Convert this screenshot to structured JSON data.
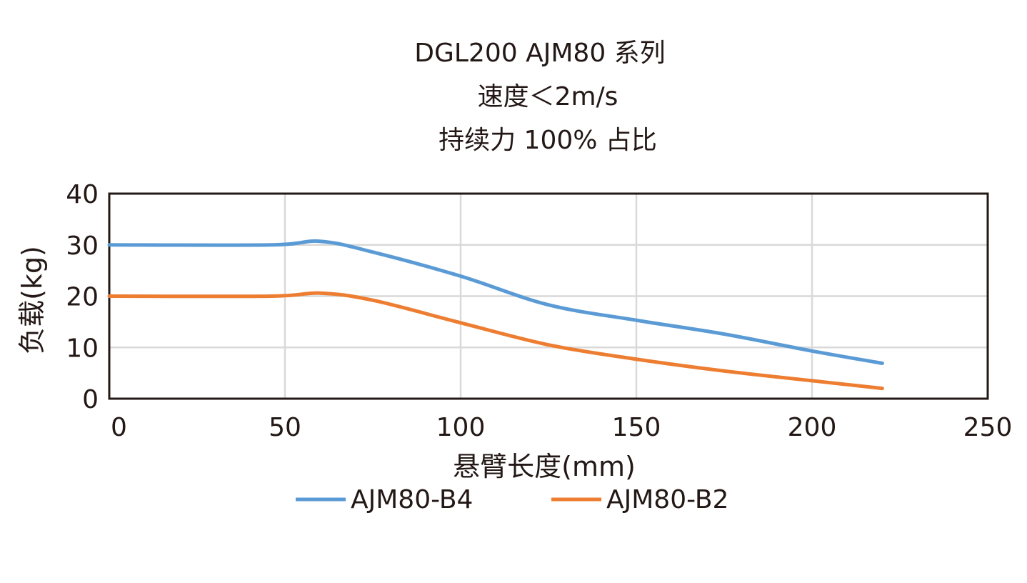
{
  "chart_data": {
    "type": "line",
    "title": [
      "DGL200 AJM80 系列",
      "速度＜2m/s",
      "持续力 100% 占比"
    ],
    "xlabel": "悬臂长度(mm)",
    "ylabel": "负载(kg)",
    "xlim": [
      0,
      250
    ],
    "ylim": [
      0,
      40
    ],
    "xticks": [
      "0",
      "50",
      "100",
      "150",
      "200",
      "250"
    ],
    "yticks": [
      "0",
      "10",
      "20",
      "30",
      "40"
    ],
    "grid": true,
    "legend": "bottom",
    "series": [
      {
        "name": "AJM80-B4",
        "color": "#5b9bd5",
        "x": [
          0,
          46,
          60,
          75,
          100,
          125,
          150,
          175,
          200,
          220
        ],
        "y": [
          30,
          30,
          30.7,
          28.6,
          23.9,
          18.3,
          15.3,
          12.6,
          9.3,
          6.9
        ]
      },
      {
        "name": "AJM80-B2",
        "color": "#ed7d31",
        "x": [
          0,
          46,
          60,
          75,
          100,
          125,
          150,
          175,
          200,
          220
        ],
        "y": [
          20,
          20,
          20.6,
          19.2,
          14.8,
          10.5,
          7.7,
          5.4,
          3.5,
          2.0
        ]
      }
    ]
  }
}
